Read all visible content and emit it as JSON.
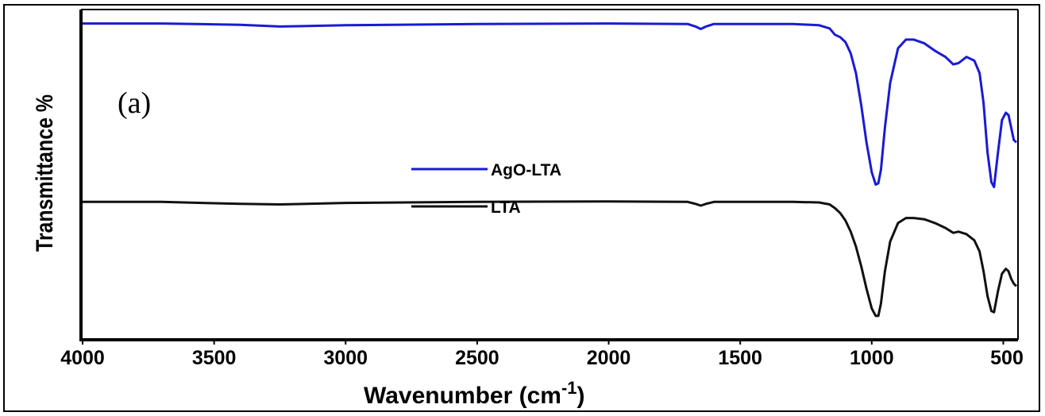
{
  "chart_data": {
    "type": "line",
    "panel_label": "(a)",
    "xlabel": "Wavenumber (cm",
    "xlabel_sup": "-1",
    "xlabel_suffix": ")",
    "ylabel": "Transmittance %",
    "xlim": [
      4000,
      450
    ],
    "x_reversed": true,
    "y_axis_ticks": false,
    "grid": false,
    "legend_placement": "center",
    "x_ticks": [
      4000,
      3500,
      3000,
      2500,
      2000,
      1500,
      1000,
      500
    ],
    "x_tick_labels": [
      "4000",
      "3500",
      "3000",
      "2500",
      "2000",
      "1500",
      "1000",
      "500"
    ],
    "series": [
      {
        "name": "AgO-LTA",
        "color": "#1a1ad6",
        "x": [
          4000,
          3700,
          3400,
          3250,
          3000,
          2500,
          2000,
          1700,
          1670,
          1650,
          1630,
          1600,
          1500,
          1300,
          1200,
          1160,
          1140,
          1120,
          1100,
          1080,
          1060,
          1040,
          1020,
          1000,
          985,
          975,
          965,
          950,
          930,
          900,
          870,
          840,
          800,
          760,
          720,
          690,
          670,
          640,
          610,
          590,
          575,
          560,
          545,
          535,
          520,
          505,
          490,
          480,
          470,
          460,
          450
        ],
        "y": [
          97,
          97,
          96.5,
          95.8,
          96.3,
          96.8,
          97,
          96.8,
          95.8,
          94.8,
          95.8,
          96.8,
          96.8,
          96.8,
          96.3,
          95,
          92.5,
          91.5,
          89.5,
          85,
          77,
          64,
          49,
          37,
          32,
          32.5,
          38,
          55,
          73,
          87,
          90.5,
          90.5,
          89,
          86,
          83.5,
          80.5,
          81,
          83.5,
          82,
          77,
          65,
          45,
          33,
          31,
          45,
          58,
          61,
          60,
          55,
          50,
          49
        ]
      },
      {
        "name": "LTA",
        "color": "#111111",
        "x": [
          4000,
          3700,
          3400,
          3250,
          3000,
          2500,
          2000,
          1700,
          1670,
          1650,
          1630,
          1600,
          1500,
          1300,
          1200,
          1160,
          1140,
          1120,
          1100,
          1080,
          1060,
          1040,
          1020,
          1000,
          985,
          975,
          965,
          950,
          930,
          900,
          870,
          840,
          800,
          760,
          720,
          690,
          670,
          640,
          610,
          590,
          575,
          560,
          545,
          535,
          520,
          505,
          490,
          480,
          470,
          460,
          450
        ],
        "y": [
          25,
          25,
          24.2,
          24,
          24.6,
          25,
          25.2,
          25,
          24.2,
          23.5,
          24.2,
          25,
          25,
          25,
          24.8,
          24,
          22.5,
          20.5,
          17.5,
          13,
          7,
          -1,
          -10,
          -18,
          -21,
          -21,
          -16,
          -3,
          9,
          16.5,
          18.5,
          18.5,
          18,
          16.5,
          14.5,
          12.5,
          13,
          12,
          9.5,
          5,
          -3,
          -13,
          -19,
          -19.5,
          -11,
          -4,
          -2,
          -3,
          -6,
          -8,
          -9
        ]
      }
    ],
    "ylim": [
      -30,
      102
    ]
  },
  "colors": {
    "ago_lta": "#1a1ad6",
    "lta": "#111111"
  }
}
